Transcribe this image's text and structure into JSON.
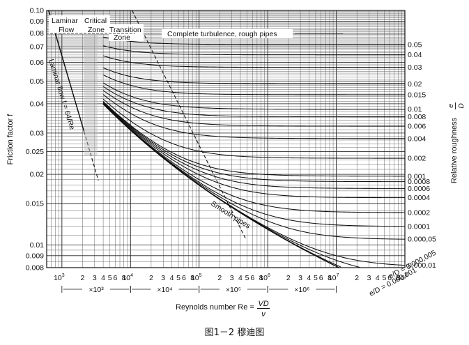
{
  "chart_data": {
    "type": "line",
    "title": "",
    "caption": "图1－2  穆迪图",
    "xlabel": "Reynolds number Re = VD/ν",
    "xlabel_parts": {
      "prefix": "Reynolds number Re = ",
      "numerator": "VD",
      "denominator": "ν"
    },
    "ylabel": "Friction factor f",
    "right_label_text": "Relative roughness",
    "right_label_fraction": {
      "numerator": "e",
      "denominator": "D"
    },
    "x_scale": "log",
    "y_scale": "log",
    "xlim": [
      600,
      100000000
    ],
    "ylim": [
      0.008,
      0.1
    ],
    "grid": true,
    "y_ticks": [
      {
        "value": 0.1,
        "label": "0.10"
      },
      {
        "value": 0.09,
        "label": "0.09"
      },
      {
        "value": 0.08,
        "label": "0.08"
      },
      {
        "value": 0.07,
        "label": "0.07"
      },
      {
        "value": 0.06,
        "label": "0.06"
      },
      {
        "value": 0.05,
        "label": "0.05"
      },
      {
        "value": 0.04,
        "label": "0.04"
      },
      {
        "value": 0.03,
        "label": "0.03"
      },
      {
        "value": 0.025,
        "label": "0.025"
      },
      {
        "value": 0.02,
        "label": "0.02"
      },
      {
        "value": 0.015,
        "label": "0.015"
      },
      {
        "value": 0.01,
        "label": "0.01"
      },
      {
        "value": 0.009,
        "label": "0.009"
      },
      {
        "value": 0.008,
        "label": "0.008"
      }
    ],
    "x_decade_labels": [
      {
        "value": 1000,
        "base": "10",
        "exp": "3"
      },
      {
        "value": 10000,
        "base": "10",
        "exp": "4"
      },
      {
        "value": 100000,
        "base": "10",
        "exp": "5"
      },
      {
        "value": 1000000,
        "base": "10",
        "exp": "6"
      },
      {
        "value": 10000000,
        "base": "10",
        "exp": "7"
      },
      {
        "value": 100000000,
        "base": "10",
        "exp": "8"
      }
    ],
    "x_minor_labels": [
      "2",
      "3",
      "4",
      "5",
      "6",
      "8"
    ],
    "x_multiplier_labels": [
      "×10³",
      "×10⁴",
      "×10⁵",
      "×10⁶"
    ],
    "series": [
      {
        "roughness": 0.05,
        "label": "0.05"
      },
      {
        "roughness": 0.04,
        "label": "0.04"
      },
      {
        "roughness": 0.03,
        "label": "0.03"
      },
      {
        "roughness": 0.02,
        "label": "0.02"
      },
      {
        "roughness": 0.015,
        "label": "0.015"
      },
      {
        "roughness": 0.01,
        "label": "0.01"
      },
      {
        "roughness": 0.008,
        "label": "0.008"
      },
      {
        "roughness": 0.006,
        "label": "0.006"
      },
      {
        "roughness": 0.004,
        "label": "0.004"
      },
      {
        "roughness": 0.002,
        "label": "0.002"
      },
      {
        "roughness": 0.001,
        "label": "0.001"
      },
      {
        "roughness": 0.0008,
        "label": "0.0008"
      },
      {
        "roughness": 0.0006,
        "label": "0.0006"
      },
      {
        "roughness": 0.0004,
        "label": "0.0004"
      },
      {
        "roughness": 0.0002,
        "label": "0.0002"
      },
      {
        "roughness": 0.0001,
        "label": "0.0001"
      },
      {
        "roughness": 5e-05,
        "label": "0.000,05"
      },
      {
        "roughness": 1e-05,
        "label": "0.000,01"
      }
    ],
    "bottom_curve_labels": [
      {
        "roughness": 1e-06,
        "text": "e/D = 0.000,001"
      },
      {
        "roughness": 5e-06,
        "text": "e/D = 0.000,005"
      }
    ],
    "laminar": {
      "equation": "f = 64/Re",
      "label": "Laminar flow f = 64/Re"
    },
    "annotations": {
      "laminar_zone": "Laminar Flow",
      "critical_zone": "Critical Zone",
      "transition_zone": "Transition Zone",
      "complete_turbulence": "Complete turbulence, rough pipes",
      "smooth_pipes": "Smooth pipes",
      "laminar_flow_label": "Laminar flow f = 64/Re"
    }
  }
}
